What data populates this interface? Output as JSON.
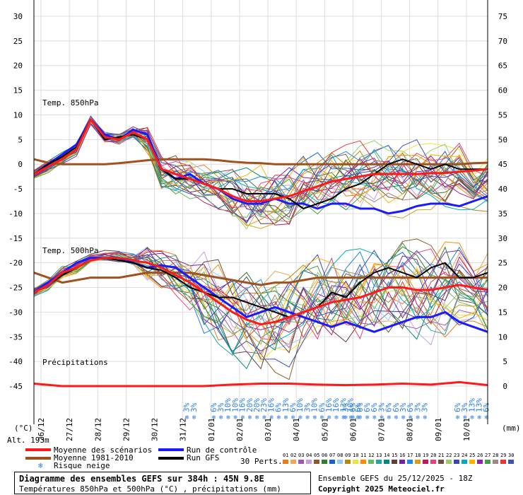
{
  "header": {
    "title": "Diagramme des ensembles GEFS sur 384h : 45N 9.8E",
    "subtitle": "Températures 850hPa et 500hPa (°C) , précipitations (mm)",
    "run_info": "Ensemble GEFS du 25/12/2025 - 18Z",
    "copyright": "Copyright 2025 Meteociel.fr",
    "altitude": "Alt. 193m"
  },
  "legend": {
    "mean_scenarios": "Moyenne des scénarios",
    "mean_clim": "Moyenne 1981-2010",
    "snow_risk": "Risque neige",
    "control_run": "Run de contrôle",
    "gfs_run": "Run GFS",
    "perts_label": "30 Perts.",
    "pert_numbers": [
      "01",
      "02",
      "03",
      "04",
      "05",
      "06",
      "07",
      "08",
      "09",
      "10",
      "11",
      "12",
      "13",
      "14",
      "15",
      "16",
      "17",
      "18",
      "19",
      "20",
      "21",
      "22",
      "23",
      "24",
      "25",
      "26",
      "27",
      "28",
      "29",
      "30"
    ],
    "pert_colors": [
      "#e87d1e",
      "#f2a65a",
      "#9b59b6",
      "#c79fe0",
      "#8b5a2b",
      "#2e7d32",
      "#1565c0",
      "#90caf9",
      "#b8860b",
      "#f0e040",
      "#ff8c00",
      "#66bb6a",
      "#26a69a",
      "#00897b",
      "#5d4037",
      "#7b1fa2",
      "#1e88e5",
      "#d4a017",
      "#c2185b",
      "#ec407a",
      "#6d4c41",
      "#9ccc65",
      "#3949ab",
      "#00acc1",
      "#ffb300",
      "#8e24aa",
      "#43a047",
      "#a1887f",
      "#e53935",
      "#3f51b5"
    ]
  },
  "panels": {
    "t850_label": "Temp. 850hPa",
    "t500_label": "Temp. 500hPa",
    "precip_label": "Précipitations",
    "unit_left": "(°C)",
    "unit_right": "(mm)"
  },
  "chart_data": {
    "type": "line",
    "x": [
      "26/12",
      "27/12",
      "28/12",
      "29/12",
      "30/12",
      "31/12",
      "01/01",
      "02/01",
      "03/01",
      "04/01",
      "05/01",
      "06/01",
      "07/01",
      "08/01",
      "09/01",
      "10/01"
    ],
    "left_axis": {
      "label": "(°C)",
      "ticks": [
        30,
        25,
        20,
        15,
        10,
        5,
        0,
        -5,
        -10,
        -15,
        -20,
        -25,
        -30,
        -35,
        -40,
        -45
      ],
      "range": [
        -45,
        30
      ]
    },
    "right_axis": {
      "label": "(mm)",
      "ticks": [
        75,
        70,
        65,
        60,
        55,
        50,
        45,
        40,
        35,
        30,
        25,
        20,
        15,
        10,
        5,
        0
      ],
      "range": [
        0,
        75
      ]
    },
    "x_range_days": [
      0,
      16
    ],
    "grid": true,
    "series_t850": {
      "mean_scenarios": [
        [
          0,
          -2
        ],
        [
          0.5,
          -0.5
        ],
        [
          1,
          1
        ],
        [
          1.5,
          3
        ],
        [
          2,
          9
        ],
        [
          2.5,
          5.5
        ],
        [
          3,
          5
        ],
        [
          3.5,
          6.5
        ],
        [
          4,
          5
        ],
        [
          4.5,
          -1
        ],
        [
          5,
          -2
        ],
        [
          5.5,
          -3
        ],
        [
          6,
          -4
        ],
        [
          6.5,
          -5
        ],
        [
          7,
          -6.5
        ],
        [
          7.5,
          -7.5
        ],
        [
          8,
          -7.5
        ],
        [
          8.5,
          -7
        ],
        [
          9,
          -6.5
        ],
        [
          9.5,
          -5.5
        ],
        [
          10,
          -4.5
        ],
        [
          10.5,
          -3.5
        ],
        [
          11,
          -3
        ],
        [
          11.5,
          -2.5
        ],
        [
          12,
          -2
        ],
        [
          12.5,
          -2
        ],
        [
          13,
          -2
        ],
        [
          13.5,
          -2
        ],
        [
          14,
          -1.8
        ],
        [
          14.5,
          -1.8
        ],
        [
          15,
          -1.5
        ],
        [
          15.5,
          -1.3
        ],
        [
          16,
          -1
        ]
      ],
      "clim": [
        [
          0,
          1
        ],
        [
          0.5,
          0.3
        ],
        [
          1,
          0
        ],
        [
          1.5,
          0
        ],
        [
          2,
          0
        ],
        [
          2.5,
          0
        ],
        [
          3,
          0.2
        ],
        [
          3.5,
          0.5
        ],
        [
          4,
          0.8
        ],
        [
          4.5,
          1
        ],
        [
          5,
          1
        ],
        [
          5.5,
          1
        ],
        [
          6,
          1
        ],
        [
          6.5,
          0.8
        ],
        [
          7,
          0.5
        ],
        [
          7.5,
          0.3
        ],
        [
          8,
          0.2
        ],
        [
          8.5,
          0
        ],
        [
          9,
          0
        ],
        [
          9.5,
          0
        ],
        [
          10,
          0
        ],
        [
          10.5,
          0
        ],
        [
          11,
          0
        ],
        [
          11.5,
          0
        ],
        [
          12,
          0
        ],
        [
          12.5,
          0
        ],
        [
          13,
          0
        ],
        [
          13.5,
          0
        ],
        [
          14,
          0
        ],
        [
          14.5,
          0
        ],
        [
          15,
          0
        ],
        [
          15.5,
          0.2
        ],
        [
          16,
          0.3
        ]
      ],
      "control": [
        [
          0,
          -2
        ],
        [
          0.5,
          0
        ],
        [
          1,
          2
        ],
        [
          1.5,
          4
        ],
        [
          2,
          9
        ],
        [
          2.5,
          6
        ],
        [
          3,
          5
        ],
        [
          3.5,
          7
        ],
        [
          4,
          6
        ],
        [
          4.5,
          -1
        ],
        [
          5,
          -3
        ],
        [
          5.5,
          -2
        ],
        [
          6,
          -4
        ],
        [
          6.5,
          -5
        ],
        [
          7,
          -7
        ],
        [
          7.5,
          -8
        ],
        [
          8,
          -8
        ],
        [
          8.5,
          -7
        ],
        [
          9,
          -8
        ],
        [
          9.5,
          -8
        ],
        [
          10,
          -9
        ],
        [
          10.5,
          -8
        ],
        [
          11,
          -8
        ],
        [
          11.5,
          -9
        ],
        [
          12,
          -9
        ],
        [
          12.5,
          -10
        ],
        [
          13,
          -9.5
        ],
        [
          13.5,
          -8.5
        ],
        [
          14,
          -8
        ],
        [
          14.5,
          -8
        ],
        [
          15,
          -8.5
        ],
        [
          15.5,
          -7.5
        ],
        [
          16,
          -6.5
        ]
      ],
      "gfs": [
        [
          0,
          -2
        ],
        [
          0.5,
          0
        ],
        [
          1,
          1.5
        ],
        [
          1.5,
          3.5
        ],
        [
          2,
          9
        ],
        [
          2.5,
          5
        ],
        [
          3,
          5.5
        ],
        [
          3.5,
          6
        ],
        [
          4,
          5
        ],
        [
          4.5,
          -1
        ],
        [
          5,
          -3
        ],
        [
          5.5,
          -3
        ],
        [
          6,
          -4
        ],
        [
          6.5,
          -5
        ],
        [
          7,
          -5
        ],
        [
          7.5,
          -6
        ],
        [
          8,
          -6
        ],
        [
          8.5,
          -6
        ],
        [
          9,
          -7
        ],
        [
          9.5,
          -9
        ],
        [
          10,
          -8
        ],
        [
          10.5,
          -7
        ],
        [
          11,
          -5
        ],
        [
          11.5,
          -4
        ],
        [
          12,
          -2
        ],
        [
          12.5,
          0
        ],
        [
          13,
          1
        ],
        [
          13.5,
          0
        ],
        [
          14,
          -1
        ],
        [
          14.5,
          0
        ],
        [
          15,
          -1
        ],
        [
          15.5,
          -1
        ],
        [
          16,
          -1
        ]
      ]
    },
    "series_t500": {
      "mean_scenarios": [
        [
          0,
          -26
        ],
        [
          0.5,
          -24.5
        ],
        [
          1,
          -22
        ],
        [
          1.5,
          -21
        ],
        [
          2,
          -19.5
        ],
        [
          2.5,
          -19
        ],
        [
          3,
          -19
        ],
        [
          3.5,
          -19.5
        ],
        [
          4,
          -20
        ],
        [
          4.5,
          -21
        ],
        [
          5,
          -22.5
        ],
        [
          5.5,
          -24
        ],
        [
          6,
          -26
        ],
        [
          6.5,
          -28
        ],
        [
          7,
          -30
        ],
        [
          7.5,
          -31.5
        ],
        [
          8,
          -32.5
        ],
        [
          8.5,
          -32
        ],
        [
          9,
          -31
        ],
        [
          9.5,
          -30
        ],
        [
          10,
          -29
        ],
        [
          10.5,
          -28
        ],
        [
          11,
          -27.5
        ],
        [
          11.5,
          -27
        ],
        [
          12,
          -26
        ],
        [
          12.5,
          -25
        ],
        [
          13,
          -25
        ],
        [
          13.5,
          -25.5
        ],
        [
          14,
          -25.5
        ],
        [
          14.5,
          -25
        ],
        [
          15,
          -24.5
        ],
        [
          15.5,
          -25
        ],
        [
          16,
          -25.5
        ]
      ],
      "clim": [
        [
          0,
          -22
        ],
        [
          0.5,
          -23
        ],
        [
          1,
          -24
        ],
        [
          1.5,
          -23.5
        ],
        [
          2,
          -23
        ],
        [
          2.5,
          -23
        ],
        [
          3,
          -23
        ],
        [
          3.5,
          -22.5
        ],
        [
          4,
          -22
        ],
        [
          4.5,
          -22
        ],
        [
          5,
          -22
        ],
        [
          5.5,
          -22
        ],
        [
          6,
          -22.5
        ],
        [
          6.5,
          -23
        ],
        [
          7,
          -23.5
        ],
        [
          7.5,
          -24
        ],
        [
          8,
          -24.5
        ],
        [
          8.5,
          -24
        ],
        [
          9,
          -24
        ],
        [
          9.5,
          -23.5
        ],
        [
          10,
          -23
        ],
        [
          10.5,
          -23
        ],
        [
          11,
          -23
        ],
        [
          11.5,
          -23
        ],
        [
          12,
          -23
        ],
        [
          12.5,
          -23
        ],
        [
          13,
          -23
        ],
        [
          13.5,
          -23
        ],
        [
          14,
          -23
        ],
        [
          14.5,
          -23
        ],
        [
          15,
          -23
        ],
        [
          15.5,
          -23
        ],
        [
          16,
          -23
        ]
      ],
      "control": [
        [
          0,
          -26
        ],
        [
          0.5,
          -24
        ],
        [
          1,
          -22
        ],
        [
          1.5,
          -20
        ],
        [
          2,
          -19
        ],
        [
          2.5,
          -19
        ],
        [
          3,
          -19
        ],
        [
          3.5,
          -20
        ],
        [
          4,
          -21
        ],
        [
          4.5,
          -20.5
        ],
        [
          5,
          -21
        ],
        [
          5.5,
          -23
        ],
        [
          6,
          -25
        ],
        [
          6.5,
          -27
        ],
        [
          7,
          -29
        ],
        [
          7.5,
          -31
        ],
        [
          8,
          -30
        ],
        [
          8.5,
          -29
        ],
        [
          9,
          -30
        ],
        [
          9.5,
          -31
        ],
        [
          10,
          -32
        ],
        [
          10.5,
          -33
        ],
        [
          11,
          -32
        ],
        [
          11.5,
          -33
        ],
        [
          12,
          -34
        ],
        [
          12.5,
          -33
        ],
        [
          13,
          -32
        ],
        [
          13.5,
          -31
        ],
        [
          14,
          -31
        ],
        [
          14.5,
          -30
        ],
        [
          15,
          -32
        ],
        [
          15.5,
          -33
        ],
        [
          16,
          -34
        ]
      ],
      "gfs": [
        [
          0,
          -26
        ],
        [
          0.5,
          -24.5
        ],
        [
          1,
          -22.5
        ],
        [
          1.5,
          -21
        ],
        [
          2,
          -19.5
        ],
        [
          2.5,
          -19
        ],
        [
          3,
          -19.5
        ],
        [
          3.5,
          -20
        ],
        [
          4,
          -21
        ],
        [
          4.5,
          -21.5
        ],
        [
          5,
          -23
        ],
        [
          5.5,
          -25
        ],
        [
          6,
          -26
        ],
        [
          6.5,
          -27
        ],
        [
          7,
          -27
        ],
        [
          7.5,
          -28
        ],
        [
          8,
          -29
        ],
        [
          8.5,
          -30
        ],
        [
          9,
          -31
        ],
        [
          9.5,
          -30
        ],
        [
          10,
          -29
        ],
        [
          10.5,
          -26
        ],
        [
          11,
          -27
        ],
        [
          11.5,
          -24
        ],
        [
          12,
          -22
        ],
        [
          12.5,
          -21
        ],
        [
          13,
          -22
        ],
        [
          13.5,
          -23
        ],
        [
          14,
          -21
        ],
        [
          14.5,
          -20
        ],
        [
          15,
          -23
        ],
        [
          15.5,
          -23
        ],
        [
          16,
          -22
        ]
      ]
    },
    "series_precip_mm": {
      "mean_scenarios": [
        [
          0,
          0.5
        ],
        [
          1,
          0
        ],
        [
          2,
          0
        ],
        [
          3,
          0
        ],
        [
          4,
          0
        ],
        [
          5,
          0
        ],
        [
          6,
          0
        ],
        [
          7,
          0.3
        ],
        [
          8,
          0.5
        ],
        [
          9,
          0.5
        ],
        [
          10,
          0.3
        ],
        [
          11,
          0.2
        ],
        [
          12,
          0.3
        ],
        [
          13,
          0.5
        ],
        [
          14,
          0.3
        ],
        [
          15,
          0.8
        ],
        [
          16,
          0.2
        ]
      ]
    },
    "snow_risk_pct": [
      {
        "day": 5.4,
        "values": [
          "3%",
          "3%"
        ]
      },
      {
        "day": 6.35,
        "values": [
          "6%",
          "3%",
          "10%",
          "10%",
          "16%",
          "20%",
          "20%",
          "23%",
          "16%",
          "6%",
          "13%",
          "6%",
          "10%",
          "3%",
          "10%",
          "6%",
          "16%",
          "16%",
          "13%",
          "10%",
          "6%"
        ]
      },
      {
        "day": 11.0,
        "values": [
          "3%",
          "6%",
          "6%",
          "6%",
          "6%",
          "3%",
          "6%",
          "6%",
          "3%",
          "6%",
          "3%",
          "3%"
        ]
      },
      {
        "day": 14.95,
        "values": [
          "6%",
          "3%",
          "13%",
          "13%",
          "6%"
        ]
      }
    ]
  }
}
